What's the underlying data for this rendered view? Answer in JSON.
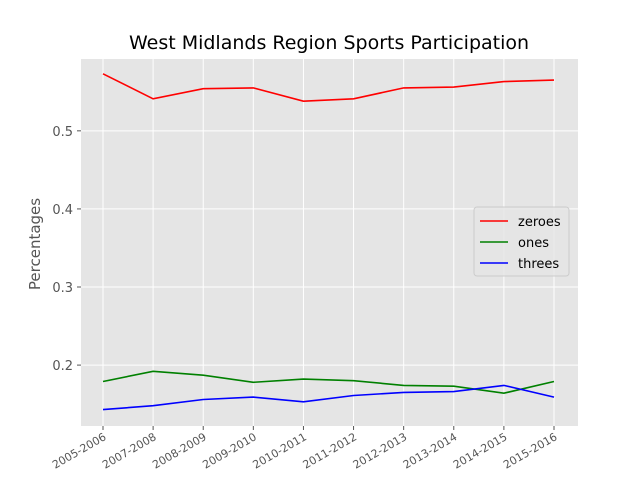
{
  "chart_data": {
    "type": "line",
    "title": "West Midlands Region Sports Participation",
    "xlabel": "",
    "ylabel": "Percentages",
    "categories": [
      "2005-2006",
      "2007-2008",
      "2008-2009",
      "2009-2010",
      "2010-2011",
      "2011-2012",
      "2012-2013",
      "2013-2014",
      "2014-2015",
      "2015-2016"
    ],
    "yticks": [
      0.2,
      0.3,
      0.4,
      0.5
    ],
    "ylim": [
      0.122,
      0.592
    ],
    "grid": true,
    "legend_position": "center-right",
    "series": [
      {
        "name": "zeroes",
        "color": "#ff0000",
        "values": [
          0.573,
          0.541,
          0.554,
          0.555,
          0.538,
          0.541,
          0.555,
          0.556,
          0.563,
          0.565
        ]
      },
      {
        "name": "ones",
        "color": "#008000",
        "values": [
          0.179,
          0.192,
          0.187,
          0.178,
          0.182,
          0.18,
          0.174,
          0.173,
          0.164,
          0.179
        ]
      },
      {
        "name": "threes",
        "color": "#0000ff",
        "values": [
          0.143,
          0.148,
          0.156,
          0.159,
          0.153,
          0.161,
          0.165,
          0.166,
          0.174,
          0.159
        ]
      }
    ]
  }
}
